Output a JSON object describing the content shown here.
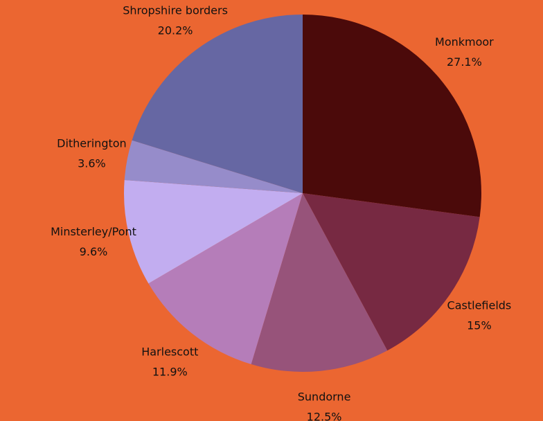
{
  "chart_data": {
    "type": "pie",
    "start_angle_deg": 0,
    "direction": "clockwise",
    "background_color": "#EB6631",
    "slices": [
      {
        "label": "Monkmoor",
        "value_label": "27.1%",
        "value": 27.1,
        "color": "#4B0A0A"
      },
      {
        "label": "Castlefields",
        "value_label": "15%",
        "value": 15.0,
        "color": "#772942"
      },
      {
        "label": "Sundorne",
        "value_label": "12.5%",
        "value": 12.5,
        "color": "#97537A"
      },
      {
        "label": "Harlescott",
        "value_label": "11.9%",
        "value": 11.9,
        "color": "#B57DB9"
      },
      {
        "label": "Minsterley/Pont",
        "value_label": "9.6%",
        "value": 9.6,
        "color": "#C2ADF0"
      },
      {
        "label": "Ditherington",
        "value_label": "3.6%",
        "value": 3.6,
        "color": "#968CCA"
      },
      {
        "label": "Shropshire borders",
        "value_label": "20.2%",
        "value": 20.2,
        "color": "#6667A3"
      }
    ]
  }
}
